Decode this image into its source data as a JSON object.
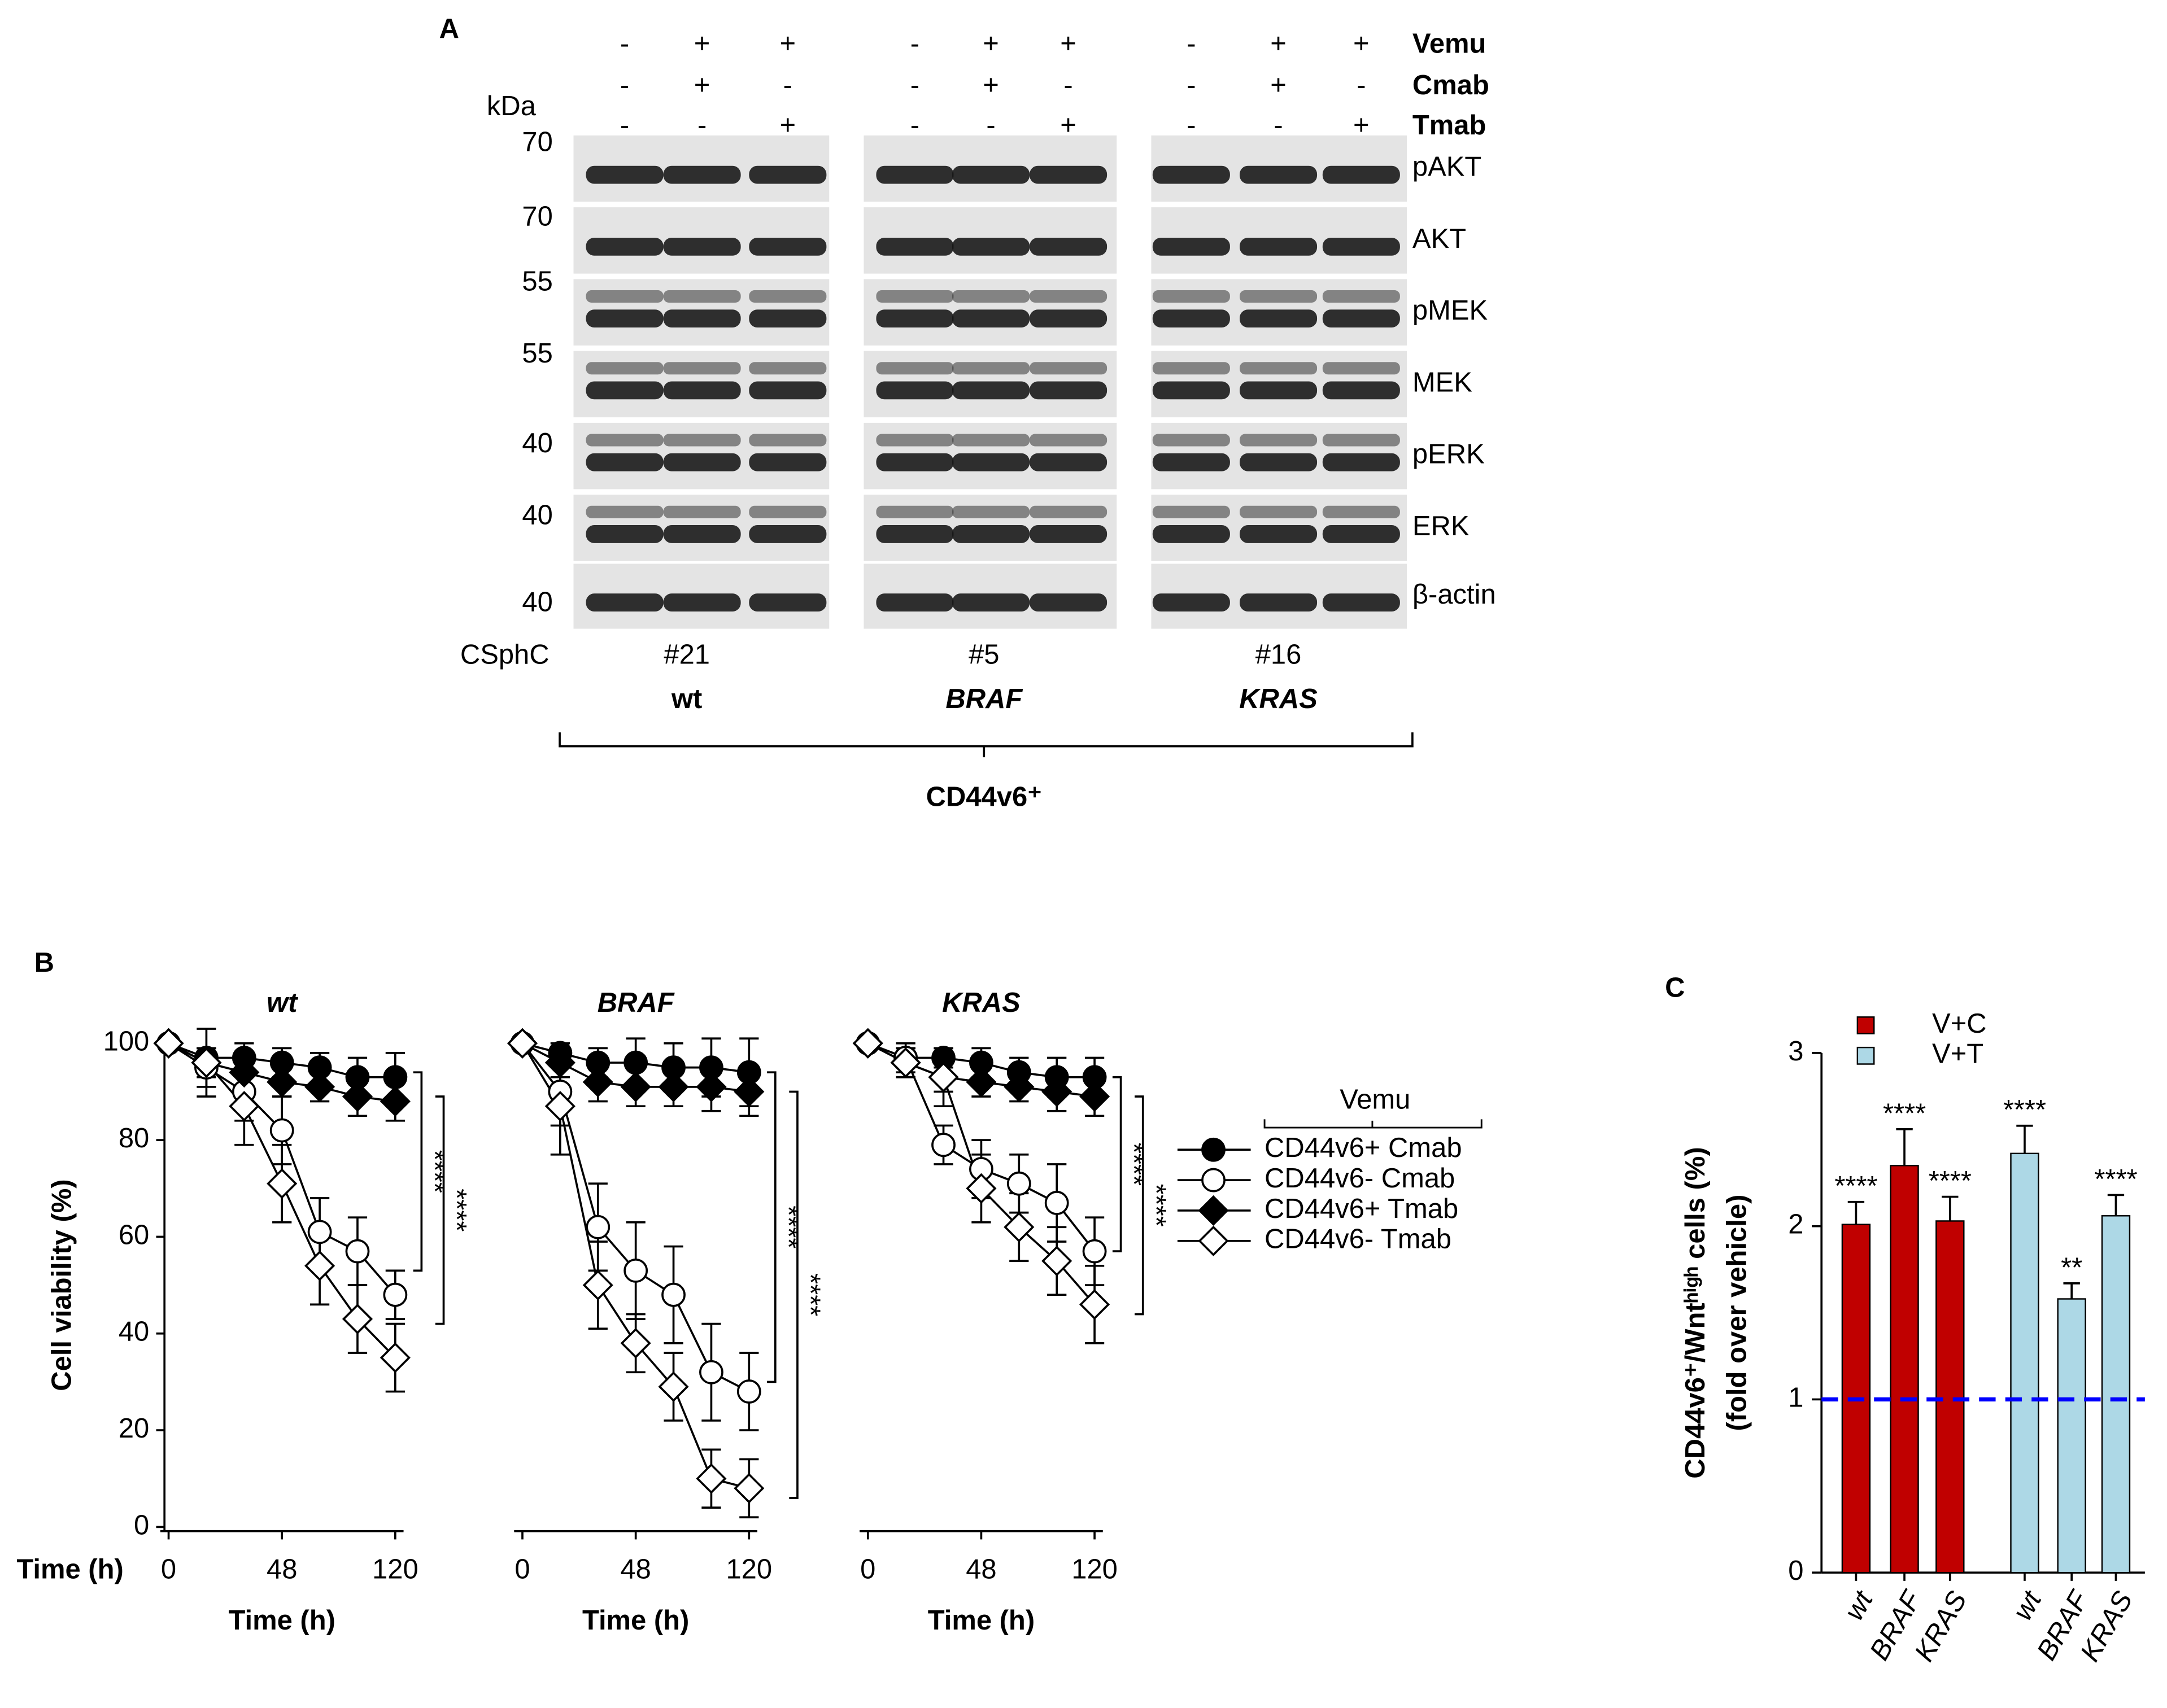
{
  "panel_a": {
    "panel_label": "A",
    "treatments": [
      {
        "name": "Vemu",
        "signs": [
          "-",
          "+",
          "+",
          "-",
          "+",
          "+",
          "-",
          "+",
          "+"
        ]
      },
      {
        "name": "Cmab",
        "signs": [
          "-",
          "+",
          "-",
          "-",
          "+",
          "-",
          "-",
          "+",
          "-"
        ]
      },
      {
        "name": "Tmab",
        "signs": [
          "-",
          "-",
          "+",
          "-",
          "-",
          "+",
          "-",
          "-",
          "+"
        ]
      }
    ],
    "unit_label": "kDa",
    "markers": [
      70,
      70,
      55,
      55,
      40,
      40,
      40
    ],
    "proteins": [
      "pAKT",
      "AKT",
      "pMEK",
      "MEK",
      "pERK",
      "ERK",
      "β-actin"
    ],
    "line_label": "CSphC",
    "lines": [
      {
        "id": "#21",
        "mutation": "wt"
      },
      {
        "id": "#5",
        "mutation": "BRAF"
      },
      {
        "id": "#16",
        "mutation": "KRAS"
      }
    ],
    "population": "CD44v6⁺"
  },
  "chart_data": [
    {
      "type": "line",
      "panel_label": "B",
      "title": "wt",
      "xlabel": "Time (h)",
      "annotation": "Time (h)",
      "ylabel": "Cell viability (%)",
      "categories": [
        "0",
        null,
        null,
        "48",
        null,
        null,
        "120"
      ],
      "ylim": [
        0,
        100
      ],
      "yticks": [
        0,
        20,
        40,
        60,
        80,
        100
      ],
      "series": [
        {
          "color": "#000000",
          "marker": "circle",
          "filled": true,
          "values": [
            100,
            97,
            97,
            96,
            95,
            93,
            93
          ],
          "errors": [
            0,
            2,
            3,
            3,
            3,
            4,
            5
          ]
        },
        {
          "color": "#000000",
          "marker": "circle",
          "filled": false,
          "values": [
            100,
            95,
            90,
            82,
            61,
            57,
            48
          ],
          "errors": [
            0,
            4,
            6,
            7,
            7,
            7,
            5
          ]
        },
        {
          "color": "#000000",
          "marker": "diamond",
          "filled": true,
          "values": [
            100,
            96,
            94,
            92,
            91,
            89,
            88
          ],
          "errors": [
            0,
            3,
            3,
            3,
            3,
            4,
            4
          ]
        },
        {
          "color": "#000000",
          "marker": "diamond",
          "filled": false,
          "values": [
            100,
            96,
            87,
            71,
            54,
            43,
            35
          ],
          "errors": [
            0,
            7,
            8,
            8,
            8,
            7,
            7
          ]
        }
      ],
      "brackets": [
        {
          "y_from": 94,
          "y_to": 53,
          "label": "****"
        },
        {
          "y_from": 89,
          "y_to": 42,
          "label": "****"
        }
      ]
    },
    {
      "type": "line",
      "title": "BRAF",
      "xlabel": "Time (h)",
      "categories": [
        "0",
        null,
        null,
        "48",
        null,
        null,
        "120"
      ],
      "ylim": [
        0,
        100
      ],
      "series": [
        {
          "color": "#000000",
          "marker": "circle",
          "filled": true,
          "values": [
            100,
            98,
            96,
            96,
            95,
            95,
            94
          ],
          "errors": [
            0,
            2,
            3,
            5,
            5,
            6,
            7
          ]
        },
        {
          "color": "#000000",
          "marker": "circle",
          "filled": false,
          "values": [
            100,
            90,
            62,
            53,
            48,
            32,
            28
          ],
          "errors": [
            0,
            7,
            9,
            10,
            10,
            10,
            8
          ]
        },
        {
          "color": "#000000",
          "marker": "diamond",
          "filled": true,
          "values": [
            100,
            96,
            92,
            91,
            91,
            91,
            90
          ],
          "errors": [
            0,
            3,
            4,
            4,
            4,
            5,
            5
          ]
        },
        {
          "color": "#000000",
          "marker": "diamond",
          "filled": false,
          "values": [
            100,
            87,
            50,
            38,
            29,
            10,
            8
          ],
          "errors": [
            0,
            10,
            9,
            6,
            7,
            6,
            6
          ]
        }
      ],
      "brackets": [
        {
          "y_from": 94,
          "y_to": 30,
          "label": "****"
        },
        {
          "y_from": 90,
          "y_to": 6,
          "label": "****"
        }
      ]
    },
    {
      "type": "line",
      "title": "KRAS",
      "xlabel": "Time (h)",
      "categories": [
        "0",
        null,
        null,
        "48",
        null,
        null,
        "120"
      ],
      "ylim": [
        0,
        100
      ],
      "series": [
        {
          "name": "CD44v6+ Cmab",
          "color": "#000000",
          "marker": "circle",
          "filled": true,
          "values": [
            100,
            97,
            97,
            96,
            94,
            93,
            93
          ],
          "errors": [
            0,
            2,
            2,
            3,
            3,
            4,
            4
          ]
        },
        {
          "name": "CD44v6- Cmab",
          "color": "#000000",
          "marker": "circle",
          "filled": false,
          "values": [
            100,
            97,
            79,
            74,
            71,
            67,
            57
          ],
          "errors": [
            0,
            3,
            4,
            6,
            6,
            8,
            7
          ]
        },
        {
          "name": "CD44v6+ Tmab",
          "color": "#000000",
          "marker": "diamond",
          "filled": true,
          "values": [
            100,
            96,
            93,
            92,
            91,
            90,
            89
          ],
          "errors": [
            0,
            3,
            3,
            3,
            3,
            4,
            4
          ]
        },
        {
          "name": "CD44v6- Tmab",
          "color": "#000000",
          "marker": "diamond",
          "filled": false,
          "values": [
            100,
            96,
            93,
            70,
            62,
            55,
            46
          ],
          "errors": [
            0,
            3,
            6,
            7,
            7,
            7,
            8
          ]
        }
      ],
      "legend": {
        "title": "Vemu",
        "position": "right"
      },
      "brackets": [
        {
          "y_from": 93,
          "y_to": 57,
          "label": "****"
        },
        {
          "y_from": 89,
          "y_to": 44,
          "label": "****"
        }
      ]
    },
    {
      "type": "bar",
      "panel_label": "C",
      "ylabel": "CD44v6⁺/Wntʰⁱᵍʰ cells (%)",
      "ylabel2": "(fold over vehicle)",
      "categories": [
        "wt",
        "BRAF",
        "KRAS",
        "wt",
        "BRAF",
        "KRAS"
      ],
      "ylim": [
        0,
        3
      ],
      "yticks": [
        0,
        1,
        2,
        3
      ],
      "reference_line": {
        "value": 1,
        "color": "#0000ff",
        "style": "dashed"
      },
      "legend": "top",
      "series": [
        {
          "name": "V+C",
          "color": "#c00000",
          "values": [
            2.01,
            2.35,
            2.03,
            null,
            null,
            null
          ],
          "errors": [
            0.13,
            0.21,
            0.14,
            null,
            null,
            null
          ],
          "value_labels": [
            "****",
            "****",
            "****",
            null,
            null,
            null
          ]
        },
        {
          "name": "V+T",
          "color": "#add8e6",
          "values": [
            null,
            null,
            null,
            2.42,
            1.58,
            2.06
          ],
          "errors": [
            null,
            null,
            null,
            0.16,
            0.09,
            0.12
          ],
          "value_labels": [
            null,
            null,
            null,
            "****",
            "**",
            "****"
          ]
        }
      ]
    }
  ]
}
